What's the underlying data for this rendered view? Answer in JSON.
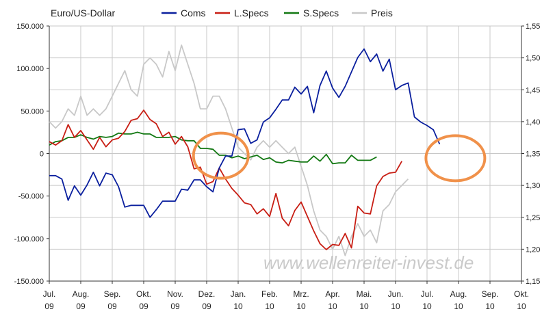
{
  "chart_data": {
    "type": "line",
    "title": "Euro/US-Dollar",
    "watermark": "www.wellenreiter-invest.de",
    "x_ticks": [
      {
        "line1": "Jul.",
        "line2": "09"
      },
      {
        "line1": "Aug.",
        "line2": "09"
      },
      {
        "line1": "Sep.",
        "line2": "09"
      },
      {
        "line1": "Okt.",
        "line2": "09"
      },
      {
        "line1": "Nov.",
        "line2": "09"
      },
      {
        "line1": "Dez.",
        "line2": "09"
      },
      {
        "line1": "Jan.",
        "line2": "10"
      },
      {
        "line1": "Feb.",
        "line2": "10"
      },
      {
        "line1": "Mrz.",
        "line2": "10"
      },
      {
        "line1": "Apr.",
        "line2": "10"
      },
      {
        "line1": "Mai.",
        "line2": "10"
      },
      {
        "line1": "Jun.",
        "line2": "10"
      },
      {
        "line1": "Jul.",
        "line2": "10"
      },
      {
        "line1": "Aug.",
        "line2": "10"
      },
      {
        "line1": "Sep.",
        "line2": "10"
      },
      {
        "line1": "Okt.",
        "line2": "10"
      }
    ],
    "y_left": {
      "min": -150000,
      "max": 150000,
      "step": 50000,
      "tick_labels": [
        "150.000",
        "100.000",
        "50.000",
        "0",
        "-50.000",
        "-100.000",
        "-150.000"
      ]
    },
    "y_right": {
      "min": 1.15,
      "max": 1.55,
      "step": 0.05,
      "tick_labels": [
        "1,55",
        "1,50",
        "1,45",
        "1,40",
        "1,35",
        "1,30",
        "1,25",
        "1,20",
        "1,15"
      ]
    },
    "grid": true,
    "legend_position": "top",
    "series": [
      {
        "name": "Coms",
        "color": "#0a1f9e",
        "axis": "left",
        "values": [
          [
            0,
            -26000
          ],
          [
            0.2,
            -26000
          ],
          [
            0.4,
            -30000
          ],
          [
            0.6,
            -55000
          ],
          [
            0.8,
            -38000
          ],
          [
            1,
            -49000
          ],
          [
            1.2,
            -37000
          ],
          [
            1.4,
            -22000
          ],
          [
            1.6,
            -38000
          ],
          [
            1.8,
            -23000
          ],
          [
            2,
            -25000
          ],
          [
            2.2,
            -39000
          ],
          [
            2.4,
            -63000
          ],
          [
            2.6,
            -61000
          ],
          [
            2.8,
            -61000
          ],
          [
            3,
            -61000
          ],
          [
            3.2,
            -75000
          ],
          [
            3.4,
            -66000
          ],
          [
            3.6,
            -56000
          ],
          [
            3.8,
            -56000
          ],
          [
            4,
            -56000
          ],
          [
            4.2,
            -42000
          ],
          [
            4.4,
            -43000
          ],
          [
            4.6,
            -31000
          ],
          [
            4.8,
            -31000
          ],
          [
            5,
            -39000
          ],
          [
            5.2,
            -45000
          ],
          [
            5.4,
            -17000
          ],
          [
            5.6,
            -3000
          ],
          [
            5.8,
            -3000
          ],
          [
            6,
            28000
          ],
          [
            6.2,
            29000
          ],
          [
            6.4,
            12000
          ],
          [
            6.6,
            16000
          ],
          [
            6.8,
            37000
          ],
          [
            7,
            42000
          ],
          [
            7.2,
            52000
          ],
          [
            7.4,
            63000
          ],
          [
            7.6,
            63000
          ],
          [
            7.8,
            78000
          ],
          [
            8,
            70000
          ],
          [
            8.2,
            79000
          ],
          [
            8.4,
            48000
          ],
          [
            8.6,
            80000
          ],
          [
            8.8,
            97000
          ],
          [
            9,
            77000
          ],
          [
            9.2,
            66000
          ],
          [
            9.4,
            79000
          ],
          [
            9.6,
            96000
          ],
          [
            9.8,
            113000
          ],
          [
            10,
            123000
          ],
          [
            10.2,
            108000
          ],
          [
            10.4,
            117000
          ],
          [
            10.6,
            97000
          ],
          [
            10.8,
            111000
          ],
          [
            11,
            75000
          ],
          [
            11.2,
            80000
          ],
          [
            11.4,
            83000
          ],
          [
            11.6,
            43000
          ],
          [
            11.8,
            37000
          ],
          [
            12,
            33000
          ],
          [
            12.2,
            28000
          ],
          [
            12.4,
            11000
          ]
        ]
      },
      {
        "name": "L.Specs",
        "color": "#c81e14",
        "axis": "left",
        "values": [
          [
            0,
            14000
          ],
          [
            0.2,
            10000
          ],
          [
            0.4,
            15000
          ],
          [
            0.6,
            34000
          ],
          [
            0.8,
            19000
          ],
          [
            1,
            27000
          ],
          [
            1.2,
            16000
          ],
          [
            1.4,
            5000
          ],
          [
            1.6,
            19000
          ],
          [
            1.8,
            8000
          ],
          [
            2,
            16000
          ],
          [
            2.2,
            18000
          ],
          [
            2.4,
            26000
          ],
          [
            2.6,
            39000
          ],
          [
            2.8,
            41000
          ],
          [
            3,
            51000
          ],
          [
            3.2,
            40000
          ],
          [
            3.4,
            35000
          ],
          [
            3.6,
            20000
          ],
          [
            3.8,
            25000
          ],
          [
            4,
            11000
          ],
          [
            4.2,
            20000
          ],
          [
            4.4,
            8000
          ],
          [
            4.6,
            -18000
          ],
          [
            4.8,
            -16000
          ],
          [
            5,
            -36000
          ],
          [
            5.2,
            -33000
          ],
          [
            5.4,
            -17000
          ],
          [
            5.6,
            -30000
          ],
          [
            5.8,
            -41000
          ],
          [
            6,
            -49000
          ],
          [
            6.2,
            -58000
          ],
          [
            6.4,
            -60000
          ],
          [
            6.6,
            -71000
          ],
          [
            6.8,
            -65000
          ],
          [
            7,
            -74000
          ],
          [
            7.2,
            -47000
          ],
          [
            7.4,
            -76000
          ],
          [
            7.6,
            -85000
          ],
          [
            7.8,
            -67000
          ],
          [
            8,
            -57000
          ],
          [
            8.2,
            -74000
          ],
          [
            8.4,
            -91000
          ],
          [
            8.6,
            -106000
          ],
          [
            8.8,
            -113000
          ],
          [
            9,
            -107000
          ],
          [
            9.2,
            -108000
          ],
          [
            9.4,
            -94000
          ],
          [
            9.6,
            -111000
          ],
          [
            9.8,
            -62000
          ],
          [
            10,
            -70000
          ],
          [
            10.2,
            -71000
          ],
          [
            10.4,
            -38000
          ],
          [
            10.6,
            -27000
          ],
          [
            10.8,
            -23000
          ],
          [
            11,
            -22000
          ],
          [
            11.2,
            -9000
          ]
        ]
      },
      {
        "name": "S.Specs",
        "color": "#127812",
        "axis": "left",
        "values": [
          [
            0,
            10000
          ],
          [
            0.2,
            14000
          ],
          [
            0.4,
            15000
          ],
          [
            0.6,
            19000
          ],
          [
            0.8,
            19000
          ],
          [
            1,
            22000
          ],
          [
            1.2,
            19000
          ],
          [
            1.4,
            17000
          ],
          [
            1.6,
            20000
          ],
          [
            1.8,
            19000
          ],
          [
            2,
            20000
          ],
          [
            2.2,
            24000
          ],
          [
            2.4,
            23000
          ],
          [
            2.6,
            23000
          ],
          [
            2.8,
            25000
          ],
          [
            3,
            23000
          ],
          [
            3.2,
            23000
          ],
          [
            3.4,
            19000
          ],
          [
            3.6,
            19000
          ],
          [
            3.8,
            19000
          ],
          [
            4,
            20000
          ],
          [
            4.2,
            16000
          ],
          [
            4.4,
            15000
          ],
          [
            4.6,
            15000
          ],
          [
            4.8,
            6000
          ],
          [
            5,
            6000
          ],
          [
            5.2,
            5000
          ],
          [
            5.4,
            -2000
          ],
          [
            5.6,
            -2000
          ],
          [
            5.8,
            -5000
          ],
          [
            6,
            -3000
          ],
          [
            6.2,
            -6000
          ],
          [
            6.4,
            -4000
          ],
          [
            6.6,
            -2000
          ],
          [
            6.8,
            -7000
          ],
          [
            7,
            -5000
          ],
          [
            7.2,
            -10000
          ],
          [
            7.4,
            -11000
          ],
          [
            7.6,
            -8000
          ],
          [
            7.8,
            -9000
          ],
          [
            8,
            -10000
          ],
          [
            8.2,
            -10000
          ],
          [
            8.4,
            -3000
          ],
          [
            8.6,
            -9000
          ],
          [
            8.8,
            -1000
          ],
          [
            9,
            -12000
          ],
          [
            9.2,
            -11000
          ],
          [
            9.4,
            -11000
          ],
          [
            9.6,
            -2000
          ],
          [
            9.8,
            -8000
          ],
          [
            10,
            -8000
          ],
          [
            10.2,
            -8000
          ],
          [
            10.4,
            -4000
          ]
        ]
      },
      {
        "name": "Preis",
        "color": "#c8c8c8",
        "axis": "right",
        "values": [
          [
            0,
            1.4
          ],
          [
            0.2,
            1.39
          ],
          [
            0.4,
            1.4
          ],
          [
            0.6,
            1.42
          ],
          [
            0.8,
            1.41
          ],
          [
            1,
            1.44
          ],
          [
            1.2,
            1.41
          ],
          [
            1.4,
            1.42
          ],
          [
            1.6,
            1.41
          ],
          [
            1.8,
            1.42
          ],
          [
            2,
            1.44
          ],
          [
            2.2,
            1.46
          ],
          [
            2.4,
            1.48
          ],
          [
            2.6,
            1.45
          ],
          [
            2.8,
            1.44
          ],
          [
            3,
            1.49
          ],
          [
            3.2,
            1.5
          ],
          [
            3.4,
            1.49
          ],
          [
            3.6,
            1.47
          ],
          [
            3.8,
            1.51
          ],
          [
            4,
            1.48
          ],
          [
            4.2,
            1.52
          ],
          [
            4.4,
            1.49
          ],
          [
            4.6,
            1.46
          ],
          [
            4.8,
            1.42
          ],
          [
            5,
            1.42
          ],
          [
            5.2,
            1.44
          ],
          [
            5.4,
            1.44
          ],
          [
            5.6,
            1.42
          ],
          [
            5.8,
            1.39
          ],
          [
            6,
            1.36
          ],
          [
            6.2,
            1.35
          ],
          [
            6.4,
            1.34
          ],
          [
            6.6,
            1.36
          ],
          [
            6.8,
            1.37
          ],
          [
            7,
            1.36
          ],
          [
            7.2,
            1.37
          ],
          [
            7.4,
            1.36
          ],
          [
            7.6,
            1.35
          ],
          [
            7.8,
            1.36
          ],
          [
            8,
            1.33
          ],
          [
            8.2,
            1.3
          ],
          [
            8.4,
            1.26
          ],
          [
            8.6,
            1.23
          ],
          [
            8.8,
            1.22
          ],
          [
            9,
            1.2
          ],
          [
            9.2,
            1.22
          ],
          [
            9.4,
            1.19
          ],
          [
            9.6,
            1.22
          ],
          [
            9.8,
            1.24
          ],
          [
            10,
            1.22
          ],
          [
            10.2,
            1.23
          ],
          [
            10.4,
            1.21
          ],
          [
            10.6,
            1.26
          ],
          [
            10.8,
            1.27
          ],
          [
            11,
            1.29
          ],
          [
            11.2,
            1.3
          ],
          [
            11.4,
            1.31
          ]
        ]
      }
    ],
    "annotations": [
      {
        "shape": "ellipse",
        "color": "#f0914a",
        "near": "Dez. 09 zero crossing"
      },
      {
        "shape": "ellipse",
        "color": "#f0914a",
        "near": "Aug. 10 zero line"
      }
    ]
  }
}
